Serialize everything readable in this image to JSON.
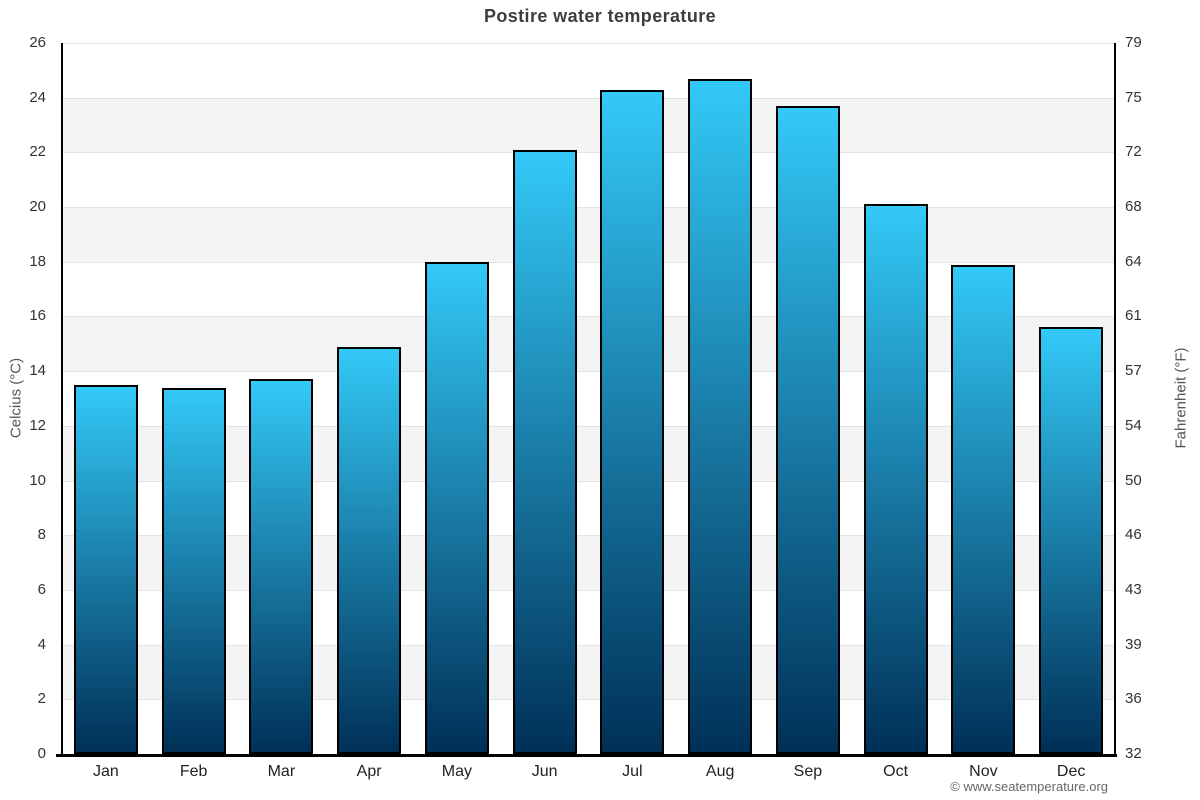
{
  "page": {
    "attribution": "© www.seatemperature.org"
  },
  "colors": {
    "bar_gradient_top": "#33c9f7",
    "bar_gradient_bottom": "#003057",
    "bar_border": "#000000",
    "band_gray": "#f4f4f4",
    "band_white": "#ffffff",
    "gridline": "#e4e4e4",
    "axis": "#000000",
    "title_text": "#3d3d3d",
    "tick_text": "#333333",
    "month_text": "#222222",
    "axis_title_text": "#555555",
    "attribution_text": "#666666"
  },
  "chart_data": {
    "type": "bar",
    "title": "Postire water temperature",
    "xlabel": "",
    "ylabel": "Celcius (°C)",
    "ylabel_right": "Fahrenheit (°F)",
    "categories": [
      "Jan",
      "Feb",
      "Mar",
      "Apr",
      "May",
      "Jun",
      "Jul",
      "Aug",
      "Sep",
      "Oct",
      "Nov",
      "Dec"
    ],
    "values": [
      13.5,
      13.4,
      13.7,
      14.9,
      18.0,
      22.1,
      24.3,
      24.7,
      23.7,
      20.1,
      17.9,
      15.6
    ],
    "unit": "°C",
    "ylim": [
      0,
      26
    ],
    "yticks_left": [
      0,
      2,
      4,
      6,
      8,
      10,
      12,
      14,
      16,
      18,
      20,
      22,
      24,
      26
    ],
    "yticks_right": [
      32,
      36,
      39,
      43,
      46,
      50,
      54,
      57,
      61,
      64,
      68,
      72,
      75,
      79
    ],
    "legend": "none",
    "grid": "horizontal gridlines every 2°C with alternating white/gray bands"
  }
}
